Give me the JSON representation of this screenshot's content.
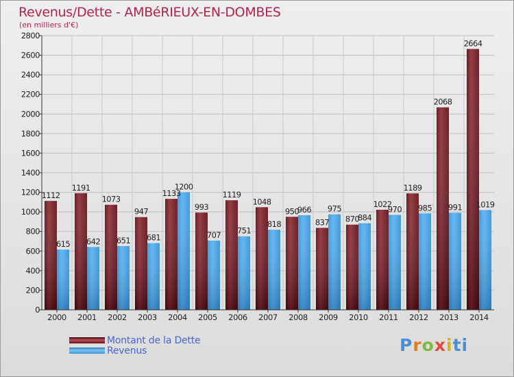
{
  "header": {
    "title": "Revenus/Dette - AMBéRIEUX-EN-DOMBES",
    "subtitle": "(en milliers d'€)"
  },
  "legend": {
    "debt_label": "Montant de la Dette",
    "revenue_label": "Revenus"
  },
  "logo": {
    "text": "Proxiti",
    "letters": [
      "P",
      "r",
      "o",
      "x",
      "i",
      "ti"
    ]
  },
  "colors": {
    "title": "#b4234a",
    "debt": "#7a1a22",
    "revenue": "#3d9ee6",
    "legend_text": "#4a63d8"
  },
  "chart_data": {
    "type": "bar",
    "title": "Revenus/Dette - AMBéRIEUX-EN-DOMBES",
    "subtitle": "(en milliers d'€)",
    "categories": [
      "2000",
      "2001",
      "2002",
      "2003",
      "2004",
      "2005",
      "2006",
      "2007",
      "2008",
      "2009",
      "2010",
      "2011",
      "2012",
      "2013",
      "2014"
    ],
    "series": [
      {
        "name": "Montant de la Dette",
        "values": [
          1112,
          1191,
          1073,
          947,
          1133,
          993,
          1119,
          1048,
          950,
          837,
          870,
          1022,
          1189,
          2068,
          2664
        ]
      },
      {
        "name": "Revenus",
        "values": [
          615,
          642,
          651,
          681,
          1200,
          707,
          751,
          818,
          966,
          975,
          884,
          970,
          985,
          991,
          1019
        ]
      }
    ],
    "data_labels": {
      "debt": [
        "1112",
        "1191",
        "1073",
        "947",
        "1133",
        "993",
        "1119",
        "1048",
        "950",
        "837",
        "870",
        "1022",
        "1189",
        "2068",
        "2664"
      ],
      "revenue": [
        "615",
        "642",
        "651",
        "681",
        "1200",
        "707",
        "751",
        "818",
        "966",
        "975",
        "884",
        "970",
        "985",
        "991",
        "1019"
      ]
    },
    "ylim": [
      0,
      2800
    ],
    "yticks": [
      0,
      200,
      400,
      600,
      800,
      1000,
      1200,
      1400,
      1600,
      1800,
      2000,
      2200,
      2400,
      2600,
      2800
    ],
    "ytick_labels": [
      "0",
      "200",
      "400",
      "600",
      "800",
      "1000",
      "1200",
      "1400",
      "1600",
      "1800",
      "2000",
      "2200",
      "2400",
      "2600",
      "2800"
    ],
    "grid": true,
    "legend_position": "bottom-left"
  }
}
